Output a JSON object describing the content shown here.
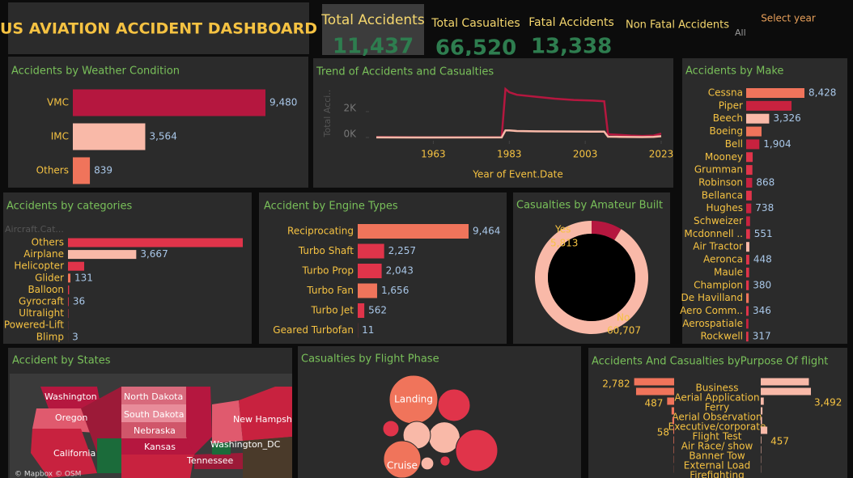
{
  "header": {
    "title": "US AVIATION ACCIDENT DASHBOARD",
    "kpis": [
      {
        "label": "Total Accidents",
        "value": "11,437"
      },
      {
        "label": "Total Casualties",
        "value": "66,520"
      },
      {
        "label": "Fatal Accidents",
        "value": "13,338"
      },
      {
        "label": "Non Fatal Accidents"
      }
    ],
    "filter": {
      "label": "Select year",
      "value": "All"
    }
  },
  "chart_data": [
    {
      "type": "hbar",
      "title": "Accidents by Weather Condition",
      "categories": [
        "VMC",
        "IMC",
        "Others"
      ],
      "values": [
        9480,
        3564,
        839
      ],
      "value_labels": [
        "9,480",
        "3,564",
        "839"
      ],
      "colors": [
        "#b5173f",
        "#f9b9a8",
        "#f0745b"
      ]
    },
    {
      "type": "line",
      "title": "Trend of Accidents and Casualties",
      "xlabel": "Year of Event.Date",
      "ylabel": "Total Acci..",
      "x": [
        1948,
        1962,
        1981,
        1982,
        1983,
        1985,
        1990,
        1995,
        2000,
        2005,
        2008,
        2009,
        2012,
        2015,
        2018,
        2021,
        2023
      ],
      "series": [
        {
          "color": "#b5173f",
          "values": [
            30,
            10,
            20,
            3750,
            3500,
            3300,
            3150,
            3000,
            2900,
            2850,
            2800,
            250,
            200,
            150,
            120,
            150,
            300
          ]
        },
        {
          "color": "#f9b9a8",
          "values": [
            5,
            2,
            5,
            550,
            550,
            500,
            480,
            470,
            460,
            450,
            450,
            60,
            50,
            40,
            30,
            50,
            100
          ]
        }
      ],
      "xlim": [
        1948,
        2023
      ],
      "ylim": [
        0,
        4000
      ],
      "xticks": [
        1963,
        1983,
        2003,
        2023
      ],
      "yticks": [
        {
          "value": 0,
          "label": "0K"
        },
        {
          "value": 2000,
          "label": "2K"
        }
      ]
    },
    {
      "type": "hbar",
      "title": "Accidents by Make",
      "categories": [
        "Cessna",
        "Piper",
        "Beech",
        "Boeing",
        "Bell",
        "Mooney",
        "Grumman",
        "Robinson",
        "Bellanca",
        "Hughes",
        "Schweizer",
        "Mcdonnell ..",
        "Air Tractor",
        "Aeronca",
        "Maule",
        "Champion",
        "De Havilland",
        "Aero Comm..",
        "Aerospatiale",
        "Rockwell"
      ],
      "values": [
        8428,
        6560,
        3326,
        2220,
        1904,
        940,
        900,
        868,
        800,
        738,
        560,
        551,
        460,
        448,
        420,
        380,
        370,
        346,
        330,
        317
      ],
      "value_labels": [
        "8,428",
        null,
        "3,326",
        null,
        "1,904",
        null,
        null,
        "868",
        null,
        "738",
        null,
        "551",
        null,
        "448",
        null,
        "380",
        null,
        "346",
        null,
        "317"
      ],
      "colors": [
        "#f0745b",
        "#c8223f",
        "#f9b9a8",
        "#f0745b",
        "#c8223f",
        "#e0344a",
        "#e0344a",
        "#c8223f",
        "#e0344a",
        "#c8223f",
        "#c8223f",
        "#e0344a",
        "#f9b9a8",
        "#e0344a",
        "#e0344a",
        "#e0344a",
        "#f0745b",
        "#e0344a",
        "#c8223f",
        "#e0344a"
      ]
    },
    {
      "type": "hbar",
      "title": "Accidents by categories",
      "ylabel": "Aircraft.Cat...",
      "categories": [
        "Others",
        "Airplane",
        "Helicopter",
        "Glider",
        "Balloon",
        "Gyrocraft",
        "Ultralight",
        "Powered-Lift",
        "Blimp"
      ],
      "values": [
        9390,
        3667,
        870,
        131,
        60,
        36,
        20,
        8,
        3
      ],
      "value_labels": [
        null,
        "3,667",
        null,
        "131",
        null,
        "36",
        null,
        null,
        "3"
      ],
      "colors": [
        "#e0344a",
        "#f9b9a8",
        "#e0344a",
        "#f0745b",
        "#e0344a",
        "#e0344a",
        "#e0344a",
        "#e0344a",
        "#e0344a"
      ]
    },
    {
      "type": "hbar",
      "title": "Accident by Engine Types",
      "categories": [
        "Reciprocating",
        "Turbo Shaft",
        "Turbo Prop",
        "Turbo Fan",
        "Turbo Jet",
        "Geared Turbofan"
      ],
      "values": [
        9464,
        2257,
        2043,
        1656,
        562,
        11
      ],
      "value_labels": [
        "9,464",
        "2,257",
        "2,043",
        "1,656",
        "562",
        "11"
      ],
      "colors": [
        "#f0745b",
        "#e0344a",
        "#e0344a",
        "#f0745b",
        "#e0344a",
        "#e0344a"
      ]
    },
    {
      "type": "donut",
      "title": "Casualties by Amateur Built",
      "categories": [
        "Yes",
        "No"
      ],
      "values": [
        5813,
        60707
      ],
      "value_labels": [
        "5,813",
        "60,707"
      ],
      "colors": [
        "#b5173f",
        "#f9b9a8"
      ]
    },
    {
      "type": "bubble",
      "title": "Casualties by Flight Phase",
      "categories": [
        "Landing",
        null,
        null,
        null,
        null,
        "Cruise",
        null,
        null,
        null
      ],
      "values": [
        14400,
        6400,
        6000,
        10800,
        4600,
        8500,
        1600,
        1000,
        600
      ],
      "colors": [
        "#f0745b",
        "#e0344a",
        "#f9b9a8",
        "#e0344a",
        "#f9b9a8",
        "#f0745b",
        "#e0344a",
        "#f9b9a8",
        "#e0344a"
      ]
    },
    {
      "type": "diverging",
      "title": "Accidents And Casualties byPurpose Of flight",
      "categories": [
        "Business",
        "Aerial Application",
        "Ferry",
        "Aerial Observation",
        "Executive/corporate",
        "Flight Test",
        "Air Race/ show",
        "Banner Tow",
        "External Load",
        "Firefighting"
      ],
      "series": [
        {
          "color": "#f0745b",
          "values": [
            2782,
            2650,
            487,
            180,
            120,
            58,
            40,
            30,
            20,
            10
          ],
          "value_labels": [
            "2,782",
            null,
            "487",
            null,
            null,
            "58",
            null,
            null,
            null,
            null
          ]
        },
        {
          "color": "#f9b9a8",
          "values": [
            3350,
            3492,
            210,
            120,
            90,
            457,
            40,
            30,
            20,
            15
          ],
          "value_labels": [
            null,
            "3,492",
            null,
            null,
            null,
            "457",
            null,
            null,
            null,
            null
          ]
        }
      ]
    }
  ],
  "map": {
    "title": "Accident by States",
    "labels": [
      "Washington",
      "North Dakota",
      "Oregon",
      "South Dakota",
      "Nebraska",
      "Kansas",
      "California",
      "Washington_DC",
      "Tennessee",
      "New Hampsh"
    ],
    "attribution": "© Mapbox © OSM"
  }
}
